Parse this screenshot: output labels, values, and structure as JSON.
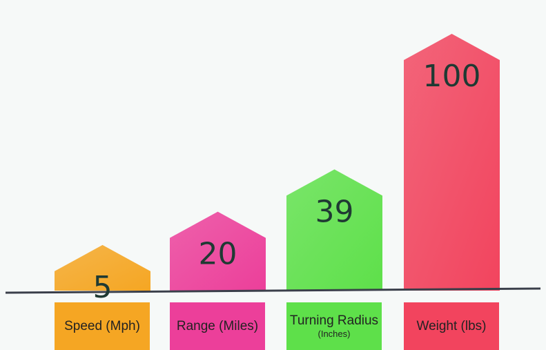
{
  "chart_data": {
    "type": "bar",
    "categories": [
      "Speed (Mph)",
      "Range (Miles)",
      "Turning Radius",
      "Weight (lbs)"
    ],
    "category_sublabels": [
      "",
      "",
      "(Inches)",
      ""
    ],
    "values": [
      5,
      20,
      39,
      100
    ],
    "data_labels": [
      "5",
      "20",
      "39",
      "100"
    ],
    "colors": [
      "#f5a623",
      "#ec3f9a",
      "#5ee04a",
      "#f2445e"
    ],
    "title": "",
    "xlabel": "",
    "ylabel": "",
    "grid": false,
    "legend": "none"
  }
}
